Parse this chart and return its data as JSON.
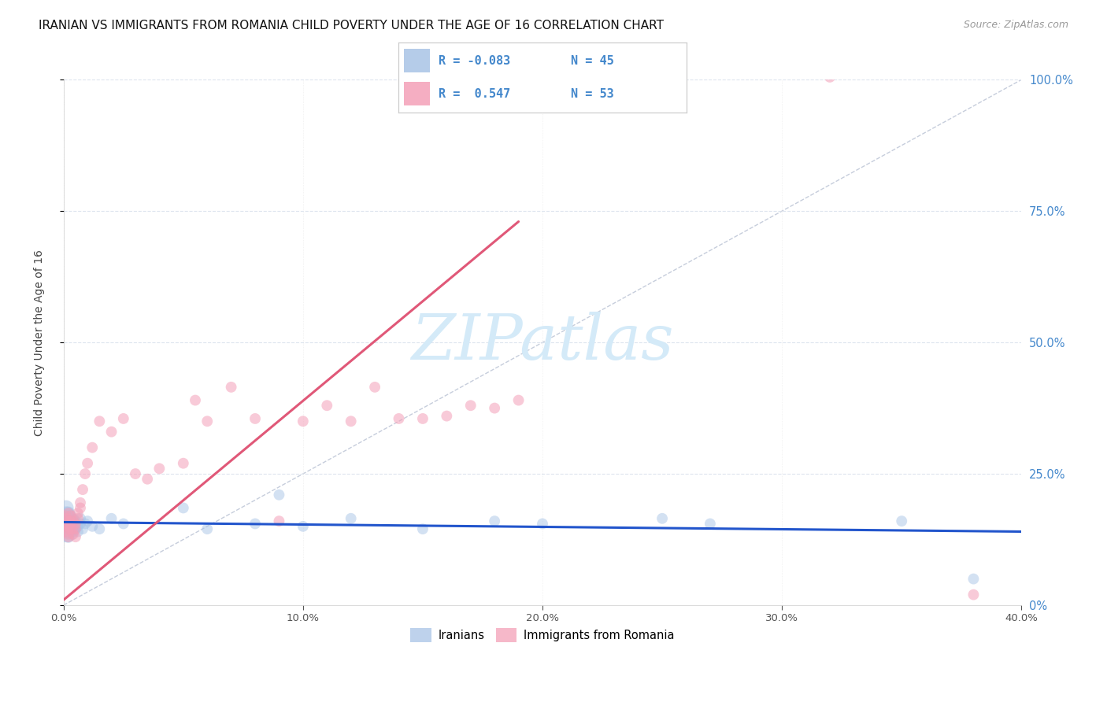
{
  "title": "IRANIAN VS IMMIGRANTS FROM ROMANIA CHILD POVERTY UNDER THE AGE OF 16 CORRELATION CHART",
  "source": "Source: ZipAtlas.com",
  "ylabel": "Child Poverty Under the Age of 16",
  "xlim": [
    0.0,
    0.4
  ],
  "ylim": [
    0.0,
    1.0
  ],
  "xtick_values": [
    0.0,
    0.1,
    0.2,
    0.3,
    0.4
  ],
  "ytick_values": [
    0.0,
    0.25,
    0.5,
    0.75,
    1.0
  ],
  "right_ytick_labels": [
    "0%",
    "25.0%",
    "50.0%",
    "75.0%",
    "100.0%"
  ],
  "iran_scatter_color": "#a8c4e6",
  "romania_scatter_color": "#f4a0b8",
  "iran_line_color": "#2255cc",
  "romania_line_color": "#e05878",
  "ref_line_color": "#c0c8d8",
  "watermark_color": "#d4eaf8",
  "background_color": "#ffffff",
  "grid_color": "#dde4ee",
  "right_axis_color": "#4488cc",
  "title_color": "#111111",
  "source_color": "#999999",
  "iran_R": -0.083,
  "iran_N": 45,
  "romania_R": 0.547,
  "romania_N": 53,
  "iranians_x": [
    0.001,
    0.001,
    0.001,
    0.001,
    0.001,
    0.002,
    0.002,
    0.002,
    0.002,
    0.002,
    0.002,
    0.003,
    0.003,
    0.003,
    0.003,
    0.004,
    0.004,
    0.004,
    0.005,
    0.005,
    0.005,
    0.006,
    0.006,
    0.007,
    0.007,
    0.008,
    0.009,
    0.01,
    0.012,
    0.015,
    0.02,
    0.025,
    0.05,
    0.06,
    0.08,
    0.09,
    0.1,
    0.12,
    0.15,
    0.18,
    0.2,
    0.25,
    0.27,
    0.35,
    0.38
  ],
  "iranians_y": [
    0.145,
    0.16,
    0.17,
    0.155,
    0.185,
    0.15,
    0.165,
    0.14,
    0.175,
    0.155,
    0.13,
    0.16,
    0.145,
    0.17,
    0.155,
    0.15,
    0.14,
    0.165,
    0.155,
    0.145,
    0.16,
    0.15,
    0.14,
    0.155,
    0.165,
    0.145,
    0.155,
    0.16,
    0.15,
    0.145,
    0.165,
    0.155,
    0.185,
    0.145,
    0.155,
    0.21,
    0.15,
    0.165,
    0.145,
    0.16,
    0.155,
    0.165,
    0.155,
    0.16,
    0.05
  ],
  "iranians_sizes": [
    600,
    400,
    300,
    250,
    200,
    200,
    180,
    160,
    150,
    140,
    120,
    120,
    110,
    100,
    100,
    100,
    100,
    100,
    100,
    100,
    100,
    100,
    100,
    100,
    100,
    100,
    100,
    100,
    100,
    100,
    100,
    100,
    100,
    100,
    100,
    100,
    100,
    100,
    100,
    100,
    100,
    100,
    100,
    100,
    100
  ],
  "romania_x": [
    0.001,
    0.001,
    0.001,
    0.001,
    0.001,
    0.002,
    0.002,
    0.002,
    0.002,
    0.002,
    0.002,
    0.003,
    0.003,
    0.003,
    0.003,
    0.004,
    0.004,
    0.004,
    0.005,
    0.005,
    0.005,
    0.006,
    0.006,
    0.007,
    0.007,
    0.008,
    0.009,
    0.01,
    0.012,
    0.015,
    0.02,
    0.025,
    0.03,
    0.035,
    0.04,
    0.05,
    0.055,
    0.06,
    0.07,
    0.08,
    0.09,
    0.1,
    0.11,
    0.12,
    0.13,
    0.14,
    0.15,
    0.16,
    0.17,
    0.18,
    0.19,
    0.32,
    0.38
  ],
  "romania_y": [
    0.155,
    0.17,
    0.14,
    0.165,
    0.15,
    0.175,
    0.145,
    0.135,
    0.16,
    0.15,
    0.13,
    0.16,
    0.145,
    0.155,
    0.17,
    0.145,
    0.135,
    0.16,
    0.155,
    0.145,
    0.13,
    0.165,
    0.175,
    0.185,
    0.195,
    0.22,
    0.25,
    0.27,
    0.3,
    0.35,
    0.33,
    0.355,
    0.25,
    0.24,
    0.26,
    0.27,
    0.39,
    0.35,
    0.415,
    0.355,
    0.16,
    0.35,
    0.38,
    0.35,
    0.415,
    0.355,
    0.355,
    0.36,
    0.38,
    0.375,
    0.39,
    1.005,
    0.02
  ],
  "romania_sizes": [
    100,
    100,
    100,
    100,
    100,
    100,
    100,
    100,
    100,
    100,
    100,
    100,
    100,
    100,
    100,
    100,
    100,
    100,
    100,
    100,
    100,
    100,
    100,
    100,
    100,
    100,
    100,
    100,
    100,
    100,
    100,
    100,
    100,
    100,
    100,
    100,
    100,
    100,
    100,
    100,
    100,
    100,
    100,
    100,
    100,
    100,
    100,
    100,
    100,
    100,
    100,
    100,
    100
  ],
  "iran_line_x": [
    0.0,
    0.4
  ],
  "iran_line_y": [
    0.158,
    0.14
  ],
  "romania_line_x": [
    0.0,
    0.19
  ],
  "romania_line_y": [
    0.01,
    0.73
  ],
  "ref_line_x": [
    0.0,
    0.4
  ],
  "ref_line_y": [
    0.0,
    1.0
  ],
  "title_fontsize": 11,
  "ylabel_fontsize": 10,
  "source_fontsize": 9,
  "tick_fontsize": 9.5,
  "legend_fontsize": 10.5,
  "watermark_fontsize": 58
}
